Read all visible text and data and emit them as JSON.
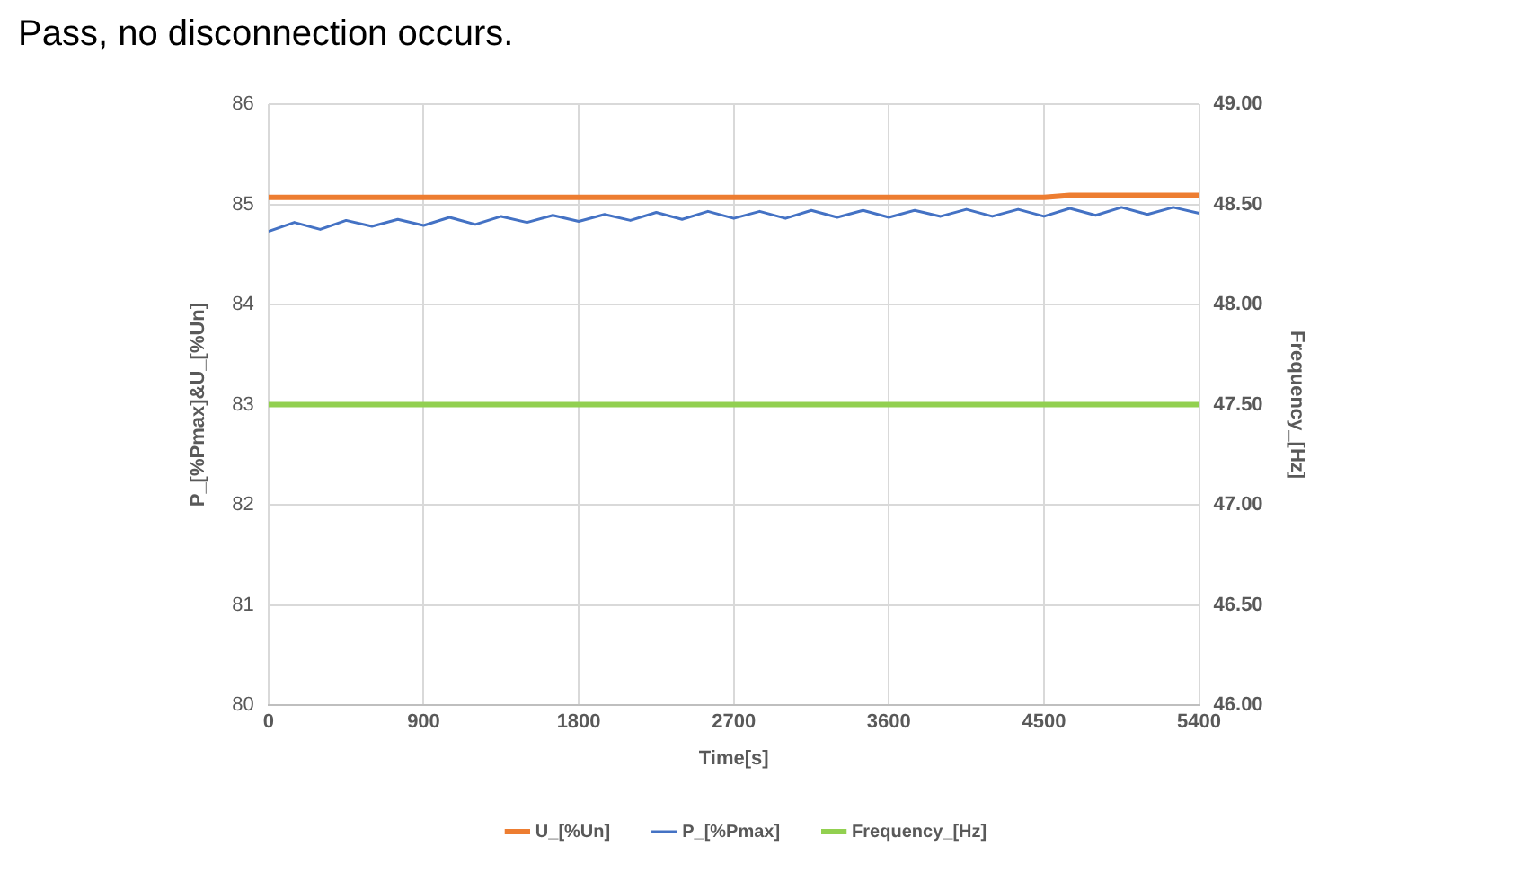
{
  "chart_data": {
    "type": "line",
    "title": "Pass, no disconnection occurs.",
    "xlabel": "Time[s]",
    "ylabel": "P_[%Pmax]&U_[%Un]",
    "y2label": "Frequency_[Hz]",
    "xlim": [
      0,
      5400
    ],
    "xticks": [
      0,
      900,
      1800,
      2700,
      3600,
      4500,
      5400
    ],
    "ylim": [
      80,
      86
    ],
    "yticks": [
      80,
      81,
      82,
      83,
      84,
      85,
      86
    ],
    "y2lim": [
      46,
      49
    ],
    "y2ticks": [
      {
        "value": 46,
        "label": "46.00"
      },
      {
        "value": 46.5,
        "label": "46.50"
      },
      {
        "value": 47,
        "label": "47.00"
      },
      {
        "value": 47.5,
        "label": "47.50"
      },
      {
        "value": 48,
        "label": "48.00"
      },
      {
        "value": 48.5,
        "label": "48.50"
      },
      {
        "value": 49,
        "label": "49.00"
      }
    ],
    "grid": true,
    "legend": "bottom",
    "marker": "none",
    "line_style": "solid",
    "series": [
      {
        "name": "U_[%Un]",
        "color": "#ed7d31",
        "x": [
          0,
          4500,
          4650,
          5400
        ],
        "values": [
          85.07,
          85.07,
          85.09,
          85.09
        ]
      },
      {
        "name": "P_[%Pmax]",
        "color": "#4472c4",
        "x": [
          0,
          150,
          300,
          450,
          600,
          750,
          900,
          1050,
          1200,
          1350,
          1500,
          1650,
          1800,
          1950,
          2100,
          2250,
          2400,
          2550,
          2700,
          2850,
          3000,
          3150,
          3300,
          3450,
          3600,
          3750,
          3900,
          4050,
          4200,
          4350,
          4500,
          4650,
          4800,
          4950,
          5100,
          5250,
          5400
        ],
        "values": [
          84.73,
          84.82,
          84.75,
          84.84,
          84.78,
          84.85,
          84.79,
          84.87,
          84.8,
          84.88,
          84.82,
          84.89,
          84.83,
          84.9,
          84.84,
          84.92,
          84.85,
          84.93,
          84.86,
          84.93,
          84.86,
          84.94,
          84.87,
          84.94,
          84.87,
          84.94,
          84.88,
          84.95,
          84.88,
          84.95,
          84.88,
          84.96,
          84.89,
          84.97,
          84.9,
          84.97,
          84.91
        ]
      },
      {
        "name": "Frequency_[Hz]",
        "color": "#92d050",
        "axis": "y2",
        "x": [
          0,
          5400
        ],
        "values": [
          47.5,
          47.5
        ]
      }
    ]
  }
}
